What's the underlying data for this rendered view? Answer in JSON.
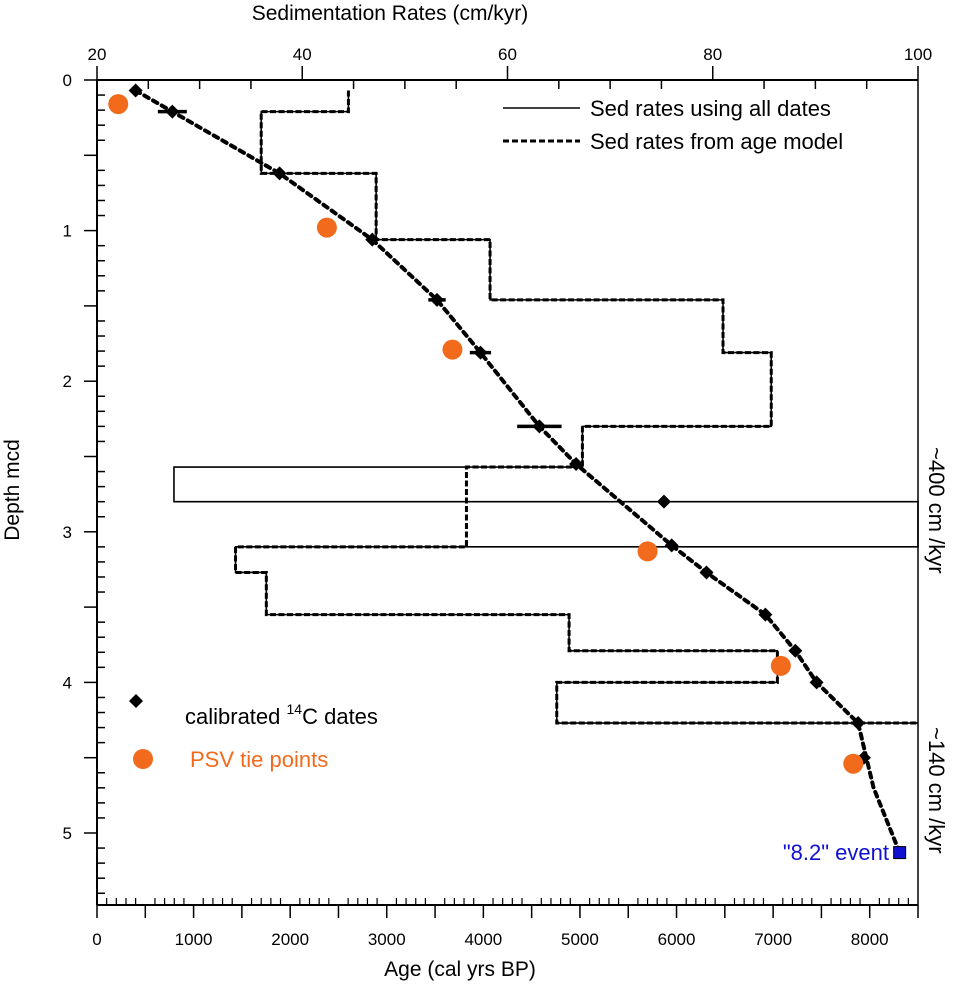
{
  "chart_data": {
    "type": "scatter",
    "title": "",
    "xlabel": "Age (cal yrs BP)",
    "ylabel": "Depth mcd",
    "x2label": "Sedimentation Rates (cm/kyr)",
    "xlim": [
      0,
      8500
    ],
    "x2lim": [
      20,
      100
    ],
    "ylim": [
      0,
      5.5
    ],
    "y_inverted": true,
    "grid": false,
    "xticks": [
      0,
      1000,
      2000,
      3000,
      4000,
      5000,
      6000,
      7000,
      8000
    ],
    "xtick_labels": [
      "0",
      "1000",
      "2000",
      "3000",
      "4000",
      "5000",
      "6000",
      "7000",
      "8000"
    ],
    "x2ticks": [
      20,
      40,
      60,
      80,
      100
    ],
    "x2tick_labels": [
      "20",
      "40",
      "60",
      "80",
      "100"
    ],
    "yticks": [
      0,
      1,
      2,
      3,
      4,
      5
    ],
    "ytick_labels": [
      "0",
      "1",
      "2",
      "3",
      "4",
      "5"
    ],
    "legend_top": {
      "placement": "top-right",
      "entries": [
        {
          "label": "Sed rates using all dates",
          "style": "solid"
        },
        {
          "label": "Sed rates from age model",
          "style": "dashed"
        }
      ]
    },
    "legend_bottom": {
      "placement": "bottom-left",
      "entries": [
        {
          "label_prefix": "calibrated ",
          "label_sup": "14",
          "label_suffix": "C dates",
          "marker": "diamond",
          "color": "#000000"
        },
        {
          "label": "PSV tie points",
          "marker": "circle",
          "color": "#F26B1D"
        }
      ]
    },
    "series": [
      {
        "name": "calibrated 14C dates",
        "marker": "diamond",
        "color": "#000000",
        "points": [
          {
            "age": 400,
            "depth": 0.07,
            "err": 0
          },
          {
            "age": 780,
            "depth": 0.21,
            "err": 150
          },
          {
            "age": 1890,
            "depth": 0.62,
            "err": 0
          },
          {
            "age": 2850,
            "depth": 1.06,
            "err": 0
          },
          {
            "age": 3520,
            "depth": 1.46,
            "err": 90
          },
          {
            "age": 3970,
            "depth": 1.81,
            "err": 110
          },
          {
            "age": 4580,
            "depth": 2.3,
            "err": 230
          },
          {
            "age": 4960,
            "depth": 2.55,
            "err": 0
          },
          {
            "age": 5870,
            "depth": 2.8,
            "err": 0
          },
          {
            "age": 5950,
            "depth": 3.09,
            "err": 0
          },
          {
            "age": 6310,
            "depth": 3.27,
            "err": 60
          },
          {
            "age": 6920,
            "depth": 3.55,
            "err": 40
          },
          {
            "age": 7230,
            "depth": 3.79,
            "err": 0
          },
          {
            "age": 7450,
            "depth": 4.0,
            "err": 0
          },
          {
            "age": 7880,
            "depth": 4.27,
            "err": 0
          },
          {
            "age": 7940,
            "depth": 4.5,
            "err": 50
          }
        ]
      },
      {
        "name": "PSV tie points",
        "marker": "circle",
        "color": "#F26B1D",
        "points": [
          {
            "age": 220,
            "depth": 0.16
          },
          {
            "age": 2380,
            "depth": 0.98
          },
          {
            "age": 3680,
            "depth": 1.79
          },
          {
            "age": 5700,
            "depth": 3.13
          },
          {
            "age": 7080,
            "depth": 3.89
          },
          {
            "age": 7830,
            "depth": 4.54
          }
        ]
      },
      {
        "name": "\"8.2\" event",
        "marker": "square",
        "color": "#1010D0",
        "points": [
          {
            "age": 8310,
            "depth": 5.13
          }
        ]
      },
      {
        "name": "age model",
        "style": "dotted",
        "color": "#000000",
        "points": [
          {
            "age": 400,
            "depth": 0.07
          },
          {
            "age": 780,
            "depth": 0.21
          },
          {
            "age": 1890,
            "depth": 0.62
          },
          {
            "age": 2850,
            "depth": 1.06
          },
          {
            "age": 3520,
            "depth": 1.46
          },
          {
            "age": 3970,
            "depth": 1.81
          },
          {
            "age": 4580,
            "depth": 2.3
          },
          {
            "age": 4960,
            "depth": 2.55
          },
          {
            "age": 5950,
            "depth": 3.09
          },
          {
            "age": 6310,
            "depth": 3.27
          },
          {
            "age": 6920,
            "depth": 3.55
          },
          {
            "age": 7230,
            "depth": 3.79
          },
          {
            "age": 7450,
            "depth": 4.0
          },
          {
            "age": 7880,
            "depth": 4.27
          },
          {
            "age": 8040,
            "depth": 4.7
          },
          {
            "age": 8310,
            "depth": 5.13
          }
        ]
      },
      {
        "name": "Sed rates from age model",
        "style": "dashed",
        "axis": "x2",
        "steps": [
          {
            "rate": 44.5,
            "top": 0.07,
            "bottom": 0.21
          },
          {
            "rate": 36.0,
            "top": 0.21,
            "bottom": 0.62
          },
          {
            "rate": 47.2,
            "top": 0.62,
            "bottom": 1.06
          },
          {
            "rate": 58.3,
            "top": 1.06,
            "bottom": 1.46
          },
          {
            "rate": 81.0,
            "top": 1.46,
            "bottom": 1.81
          },
          {
            "rate": 85.7,
            "top": 1.81,
            "bottom": 2.3
          },
          {
            "rate": 67.3,
            "top": 2.3,
            "bottom": 2.57
          },
          {
            "rate": 56.0,
            "top": 2.57,
            "bottom": 3.1
          },
          {
            "rate": 33.5,
            "top": 3.1,
            "bottom": 3.27
          },
          {
            "rate": 36.5,
            "top": 3.27,
            "bottom": 3.55
          },
          {
            "rate": 66.0,
            "top": 3.55,
            "bottom": 3.79
          },
          {
            "rate": 86.3,
            "top": 3.79,
            "bottom": 4.0
          },
          {
            "rate": 64.8,
            "top": 4.0,
            "bottom": 4.27
          },
          {
            "rate": 101,
            "top": 4.27,
            "bottom": 4.27
          }
        ]
      },
      {
        "name": "Sed rates using all dates",
        "style": "solid",
        "axis": "x2",
        "steps": [
          {
            "rate": 44.5,
            "top": 0.07,
            "bottom": 0.21
          },
          {
            "rate": 36.0,
            "top": 0.21,
            "bottom": 0.62
          },
          {
            "rate": 47.2,
            "top": 0.62,
            "bottom": 1.06
          },
          {
            "rate": 58.3,
            "top": 1.06,
            "bottom": 1.46
          },
          {
            "rate": 81.0,
            "top": 1.46,
            "bottom": 1.81
          },
          {
            "rate": 85.7,
            "top": 1.81,
            "bottom": 2.3
          },
          {
            "rate": 67.3,
            "top": 2.3,
            "bottom": 2.57
          },
          {
            "rate": 27.5,
            "top": 2.57,
            "bottom": 2.8
          },
          {
            "rate": 101,
            "top": 2.8,
            "bottom": 3.1
          },
          {
            "rate": 33.5,
            "top": 3.1,
            "bottom": 3.27
          },
          {
            "rate": 36.5,
            "top": 3.27,
            "bottom": 3.55
          },
          {
            "rate": 66.0,
            "top": 3.55,
            "bottom": 3.79
          },
          {
            "rate": 86.3,
            "top": 3.79,
            "bottom": 4.0
          },
          {
            "rate": 64.8,
            "top": 4.0,
            "bottom": 4.27
          },
          {
            "rate": 101,
            "top": 4.27,
            "bottom": 4.27
          }
        ]
      }
    ],
    "annotations": [
      {
        "text": "\"8.2\" event",
        "color": "#1010D0",
        "age": 8310,
        "depth": 5.13
      },
      {
        "text": "~400 cm /kyr",
        "orientation": "vertical",
        "side": "right",
        "depth_range": [
          2.55,
          3.1
        ]
      },
      {
        "text": "~140 cm /kyr",
        "orientation": "vertical",
        "side": "right",
        "depth_range": [
          4.27,
          5.4
        ]
      }
    ]
  }
}
